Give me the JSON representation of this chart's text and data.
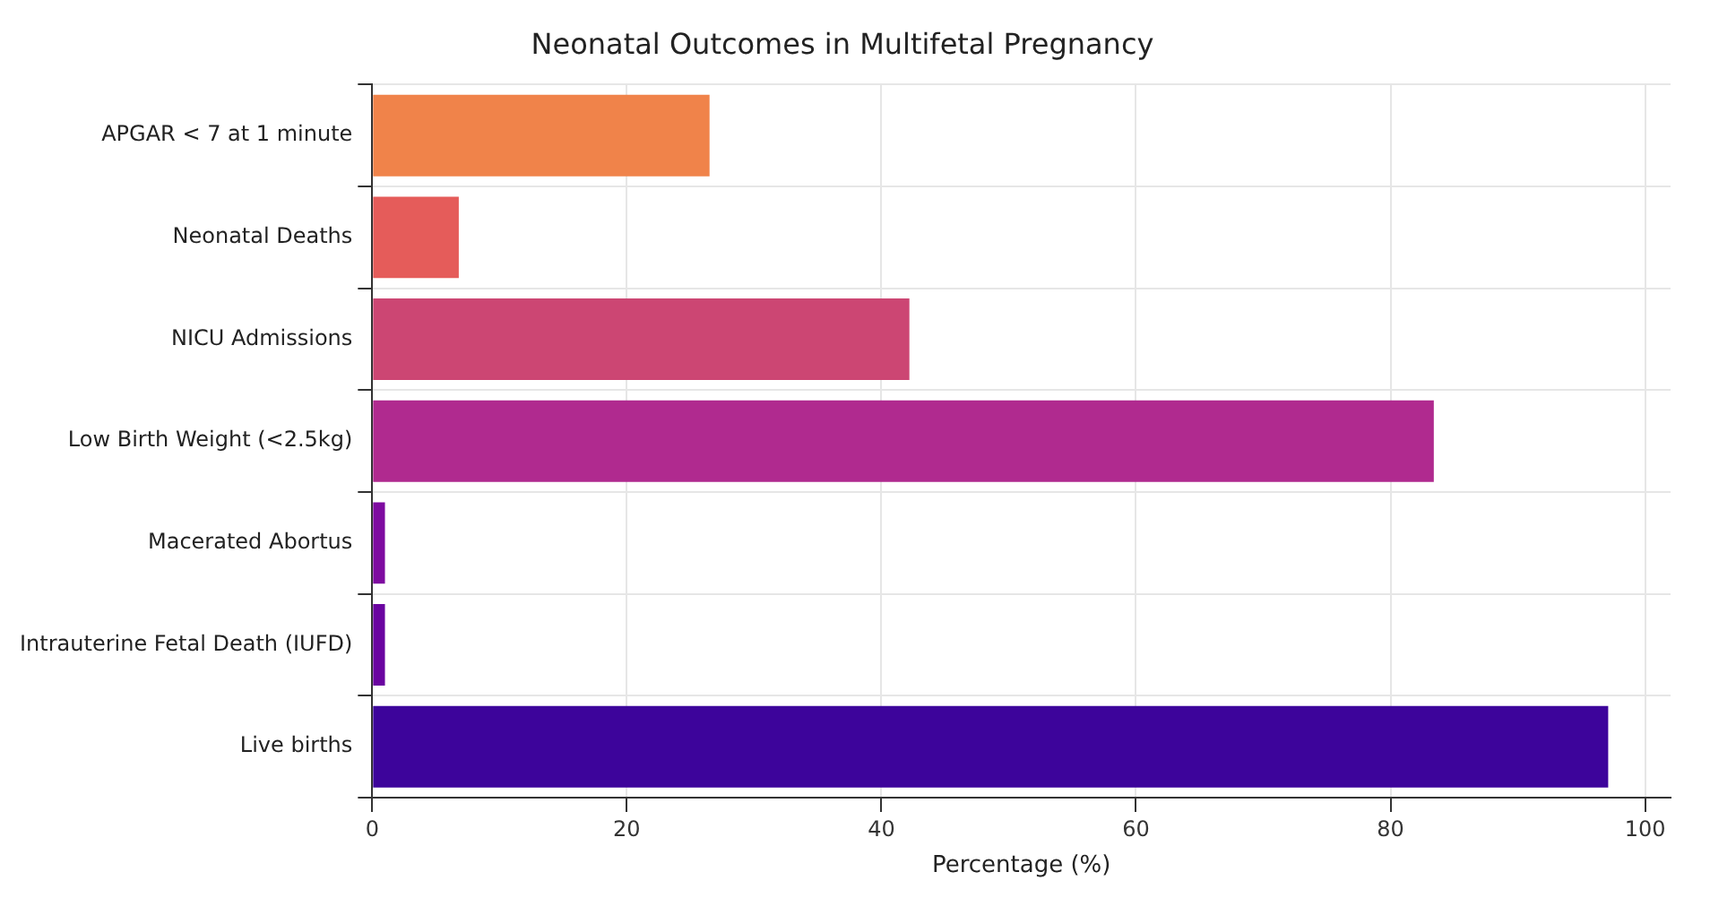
{
  "chart_data": {
    "type": "bar",
    "orientation": "horizontal",
    "title": "Neonatal Outcomes in Multifetal Pregnancy",
    "xlabel": "Percentage (%)",
    "categories": [
      "APGAR < 7 at 1 minute",
      "Neonatal Deaths",
      "NICU Admissions",
      "Low Birth Weight (<2.5kg)",
      "Macerated Abortus",
      "Intrauterine Fetal Death (IUFD)",
      "Live births"
    ],
    "values": [
      26.5,
      6.8,
      42.2,
      83.4,
      1.0,
      1.0,
      97.1
    ],
    "colors": [
      "#f0834a",
      "#e55c5a",
      "#cc4673",
      "#b02a8f",
      "#7e0ba0",
      "#6a04a0",
      "#3d049b"
    ],
    "xlim": [
      0,
      102
    ],
    "xticks": [
      0,
      20,
      40,
      60,
      80,
      100
    ],
    "grid": true
  }
}
